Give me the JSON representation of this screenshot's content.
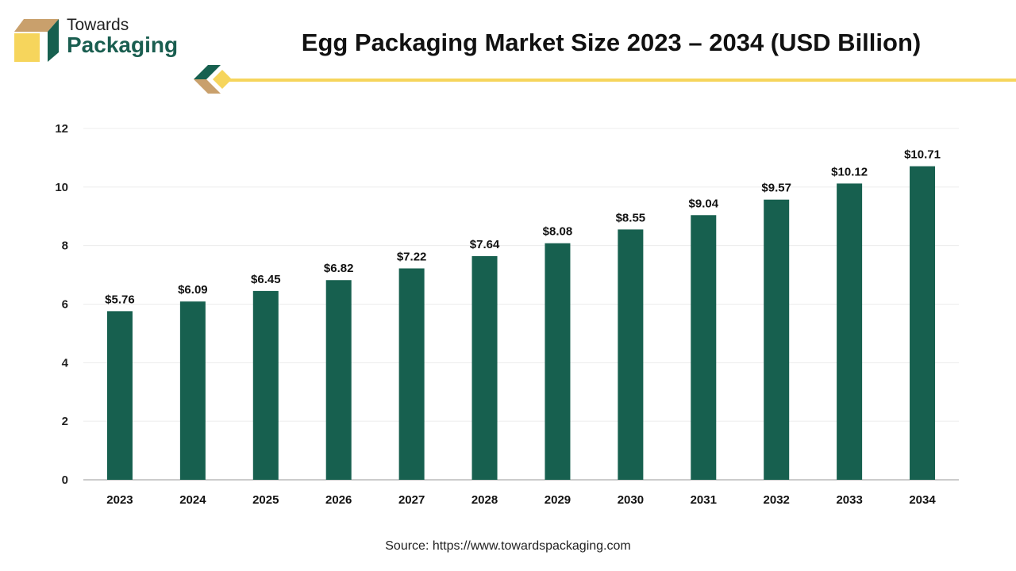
{
  "brand": {
    "line1": "Towards",
    "line2": "Packaging"
  },
  "source": "Source: https://www.towardspackaging.com",
  "colors": {
    "bar": "#17604f",
    "accent": "#f6d55c",
    "brand_tan": "#c9a06c"
  },
  "chart_data": {
    "type": "bar",
    "title": "Egg Packaging Market Size 2023 – 2034 (USD Billion)",
    "categories": [
      "2023",
      "2024",
      "2025",
      "2026",
      "2027",
      "2028",
      "2029",
      "2030",
      "2031",
      "2032",
      "2033",
      "2034"
    ],
    "values": [
      5.76,
      6.09,
      6.45,
      6.82,
      7.22,
      7.64,
      8.08,
      8.55,
      9.04,
      9.57,
      10.12,
      10.71
    ],
    "data_labels": [
      "$5.76",
      "$6.09",
      "$6.45",
      "$6.82",
      "$7.22",
      "$7.64",
      "$8.08",
      "$8.55",
      "$9.04",
      "$9.57",
      "$10.12",
      "$10.71"
    ],
    "yticks": [
      0,
      2,
      4,
      6,
      8,
      10,
      12
    ],
    "ylim": [
      0,
      12
    ],
    "grid": true,
    "xlabel": "",
    "ylabel": ""
  }
}
